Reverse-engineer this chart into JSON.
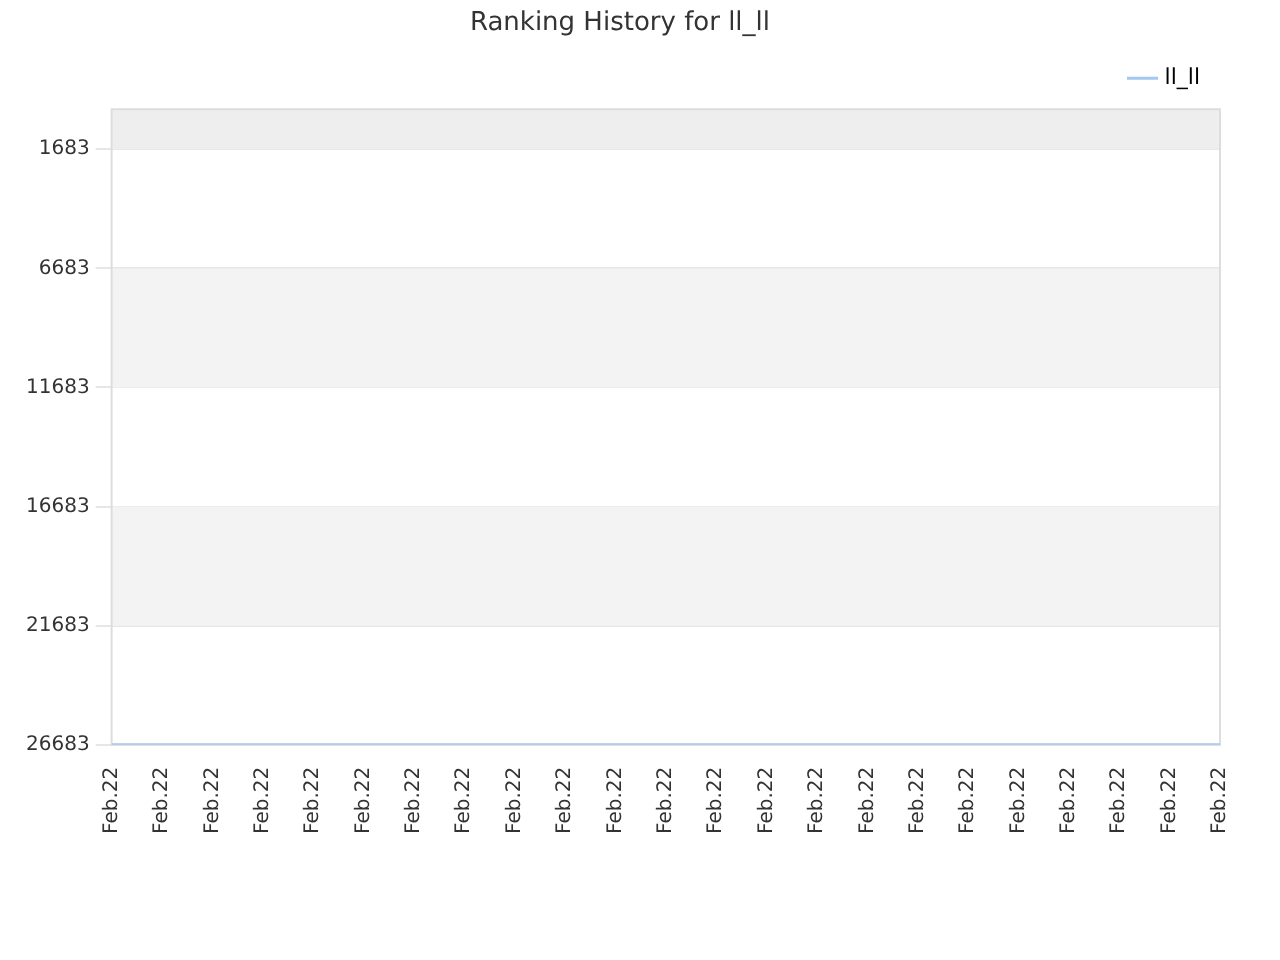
{
  "chart_data": {
    "type": "line",
    "title": "Ranking History for ll_ll",
    "categories": [
      "Feb.22",
      "Feb.22",
      "Feb.22",
      "Feb.22",
      "Feb.22",
      "Feb.22",
      "Feb.22",
      "Feb.22",
      "Feb.22",
      "Feb.22",
      "Feb.22",
      "Feb.22",
      "Feb.22",
      "Feb.22",
      "Feb.22",
      "Feb.22",
      "Feb.22",
      "Feb.22",
      "Feb.22",
      "Feb.22",
      "Feb.22",
      "Feb.22",
      "Feb.22"
    ],
    "series": [
      {
        "name": "ll_ll",
        "color": "#a3c8f0",
        "values": [
          26683,
          26683,
          26683,
          26683,
          26683,
          26683,
          26683,
          26683,
          26683,
          26683,
          26683,
          26683,
          26683,
          26683,
          26683,
          26683,
          26683,
          26683,
          26683,
          26683,
          26683,
          26683,
          26683
        ]
      }
    ],
    "ylim": [
      26683,
      0
    ],
    "yticks": [
      1683,
      6683,
      11683,
      16683,
      21683,
      26683
    ],
    "bands": [
      {
        "axis": "y",
        "from": 0,
        "to": 1683,
        "color": "#eeeeee"
      },
      {
        "axis": "y",
        "from": 6683,
        "to": 11683,
        "color": "#f3f3f3"
      },
      {
        "axis": "y",
        "from": 16683,
        "to": 21683,
        "color": "#f3f3f3"
      }
    ],
    "grid": "y",
    "legend": "top right",
    "marker": "none",
    "line_style": "solid"
  }
}
